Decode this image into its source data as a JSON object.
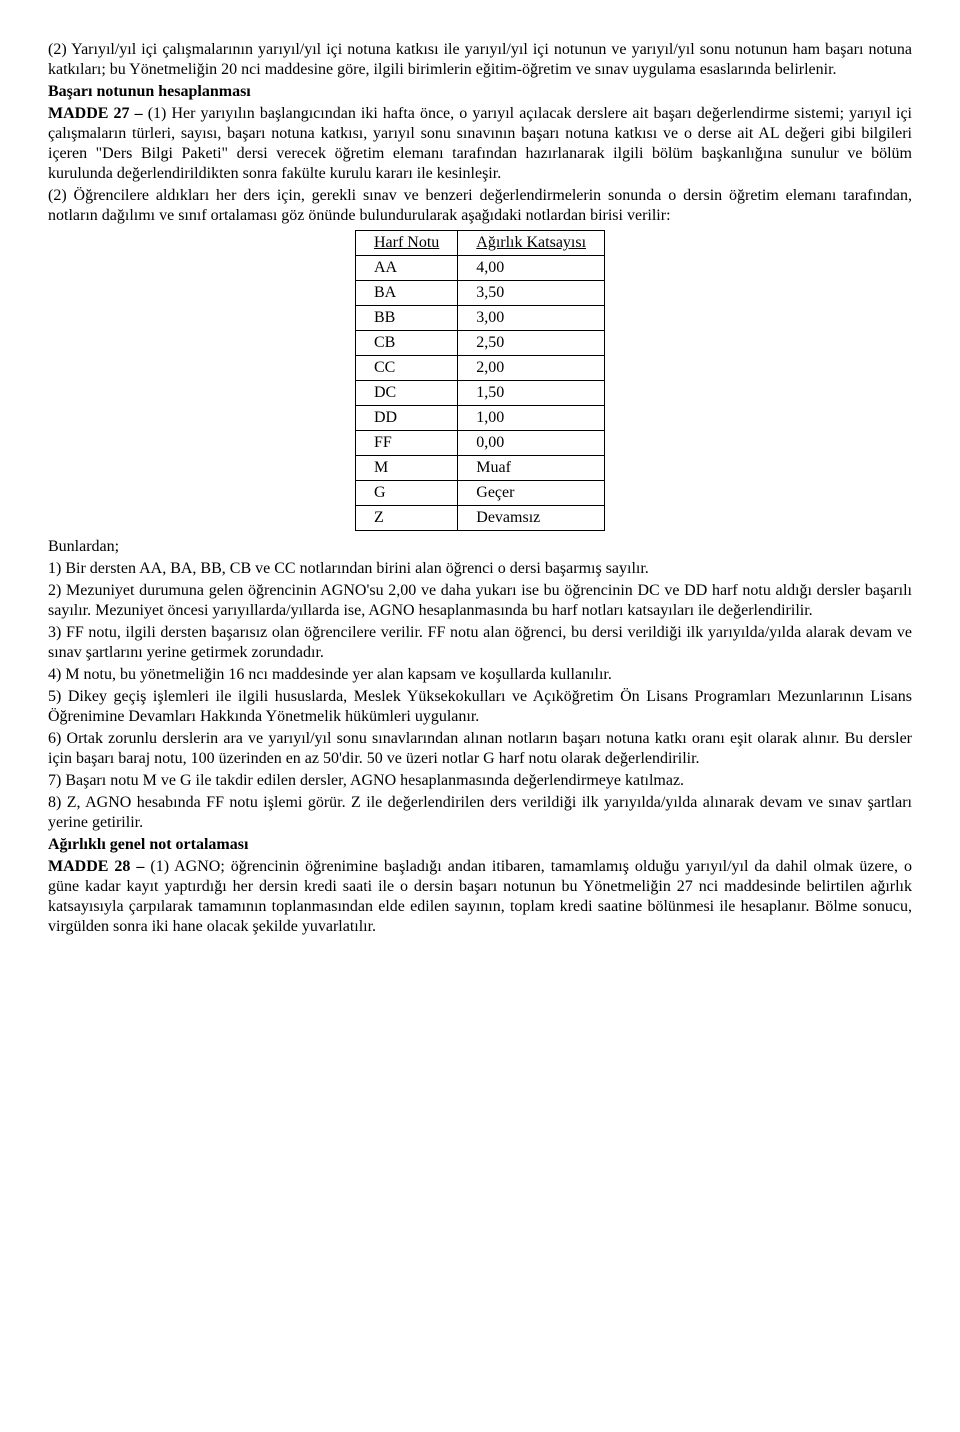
{
  "p1": "(2) Yarıyıl/yıl içi çalışmalarının yarıyıl/yıl içi notuna katkısı ile yarıyıl/yıl içi notunun ve yarıyıl/yıl sonu notunun ham başarı notuna katkıları; bu Yönetmeliğin 20 nci maddesine göre, ilgili birimlerin eğitim-öğretim ve sınav uygulama esaslarında belirlenir.",
  "h1": "Başarı notunun hesaplanması",
  "m27_label": "MADDE 27 – ",
  "m27_body": "(1) Her yarıyılın başlangıcından iki hafta önce, o yarıyıl açılacak derslere ait başarı değerlendirme sistemi; yarıyıl içi çalışmaların türleri, sayısı, başarı notuna katkısı, yarıyıl sonu sınavının başarı notuna katkısı ve o derse ait AL değeri gibi bilgileri içeren \"Ders Bilgi Paketi\" dersi verecek öğretim elemanı tarafından hazırlanarak ilgili bölüm başkanlığına sunulur ve bölüm kurulunda değerlendirildikten sonra fakülte kurulu kararı ile kesinleşir.",
  "m27_2": "(2) Öğrencilere aldıkları her ders için, gerekli sınav ve benzeri değerlendirmelerin sonunda o dersin öğretim elemanı tarafından, notların dağılımı ve sınıf ortalaması göz önünde bulundurularak aşağıdaki notlardan birisi verilir:",
  "table": {
    "col1": "Harf Notu",
    "col2": "Ağırlık Katsayısı",
    "rows": [
      {
        "a": "AA",
        "b": "4,00"
      },
      {
        "a": "BA",
        "b": "3,50"
      },
      {
        "a": "BB",
        "b": "3,00"
      },
      {
        "a": "CB",
        "b": "2,50"
      },
      {
        "a": "CC",
        "b": "2,00"
      },
      {
        "a": "DC",
        "b": "1,50"
      },
      {
        "a": "DD",
        "b": "1,00"
      },
      {
        "a": "FF",
        "b": "0,00"
      },
      {
        "a": "M",
        "b": "Muaf"
      },
      {
        "a": "G",
        "b": "Geçer"
      },
      {
        "a": "Z",
        "b": "Devamsız"
      }
    ]
  },
  "bunlardan": "Bunlardan;",
  "li1": "1) Bir dersten AA, BA, BB, CB ve CC notlarından birini alan öğrenci o dersi başarmış sayılır.",
  "li2": "2) Mezuniyet durumuna gelen öğrencinin AGNO'su 2,00 ve daha yukarı ise bu öğrencinin DC ve DD harf notu aldığı dersler başarılı sayılır. Mezuniyet öncesi yarıyıllarda/yıllarda ise, AGNO hesaplanmasında bu harf notları katsayıları ile değerlendirilir.",
  "li3": "3) FF notu, ilgili dersten başarısız olan öğrencilere verilir. FF notu alan öğrenci, bu dersi verildiği ilk yarıyılda/yılda alarak devam ve sınav şartlarını yerine getirmek zorundadır.",
  "li4": "4) M notu, bu yönetmeliğin 16 ncı maddesinde yer alan kapsam ve koşullarda kullanılır.",
  "li5": "5) Dikey geçiş işlemleri ile ilgili hususlarda, Meslek Yüksekokulları ve Açıköğretim Ön Lisans Programları Mezunlarının Lisans Öğrenimine Devamları Hakkında Yönetmelik hükümleri uygulanır.",
  "li6": "6) Ortak zorunlu derslerin ara ve yarıyıl/yıl sonu sınavlarından alınan notların başarı notuna katkı oranı eşit olarak alınır. Bu dersler için başarı baraj notu, 100 üzerinden en az 50'dir. 50 ve üzeri notlar G harf notu olarak değerlendirilir.",
  "li7": "7) Başarı notu M ve G ile takdir edilen dersler, AGNO hesaplanmasında değerlendirmeye katılmaz.",
  "li8": "8) Z, AGNO hesabında FF notu işlemi görür. Z ile değerlendirilen ders verildiği ilk yarıyılda/yılda alınarak devam ve sınav şartları yerine getirilir.",
  "h2": "Ağırlıklı genel not ortalaması",
  "m28_label": "MADDE 28 – ",
  "m28_body": "(1) AGNO; öğrencinin öğrenimine başladığı andan itibaren, tamamlamış olduğu yarıyıl/yıl da dahil olmak üzere, o güne kadar kayıt yaptırdığı her dersin kredi saati ile o dersin başarı notunun bu Yönetmeliğin 27 nci maddesinde belirtilen ağırlık katsayısıyla çarpılarak tamamının toplanmasından elde edilen sayının, toplam kredi saatine bölünmesi ile hesaplanır. Bölme sonucu, virgülden sonra iki hane olacak şekilde yuvarlatılır."
}
